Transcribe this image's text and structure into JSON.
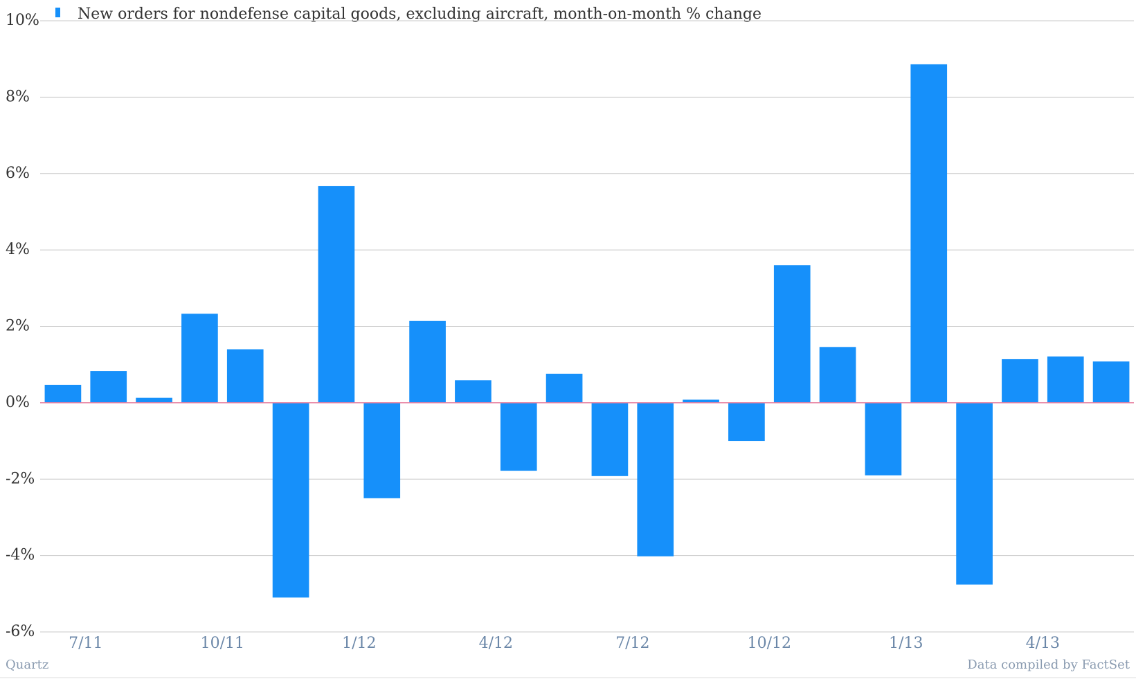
{
  "chart_data": {
    "type": "bar",
    "legend": "New orders for nondefense capital goods, excluding aircraft, month-on-month % change",
    "color": "#1690fa",
    "categories": [
      null,
      "7/11",
      null,
      null,
      "10/11",
      null,
      null,
      "1/12",
      null,
      null,
      "4/12",
      null,
      null,
      "7/12",
      null,
      null,
      "10/12",
      null,
      null,
      "1/13",
      null,
      null,
      "4/13",
      null
    ],
    "values": [
      0.47,
      0.83,
      0.13,
      2.33,
      1.4,
      -5.1,
      5.67,
      -2.5,
      2.14,
      0.59,
      -1.78,
      0.76,
      -1.92,
      -4.02,
      0.08,
      -1.0,
      3.6,
      1.46,
      -1.9,
      8.86,
      -4.76,
      1.14,
      1.21,
      1.08
    ],
    "ylim": [
      -6,
      10
    ],
    "yticks": [
      {
        "value": -6,
        "label": "-6%"
      },
      {
        "value": -4,
        "label": "-4%"
      },
      {
        "value": -2,
        "label": "-2%"
      },
      {
        "value": 0,
        "label": "0%"
      },
      {
        "value": 2,
        "label": "2%"
      },
      {
        "value": 4,
        "label": "4%"
      },
      {
        "value": 6,
        "label": "6%"
      },
      {
        "value": 8,
        "label": "8%"
      },
      {
        "value": 10,
        "label": "10%"
      }
    ],
    "grid": true,
    "source_left": "Quartz",
    "source_right": "Data compiled by FactSet"
  }
}
